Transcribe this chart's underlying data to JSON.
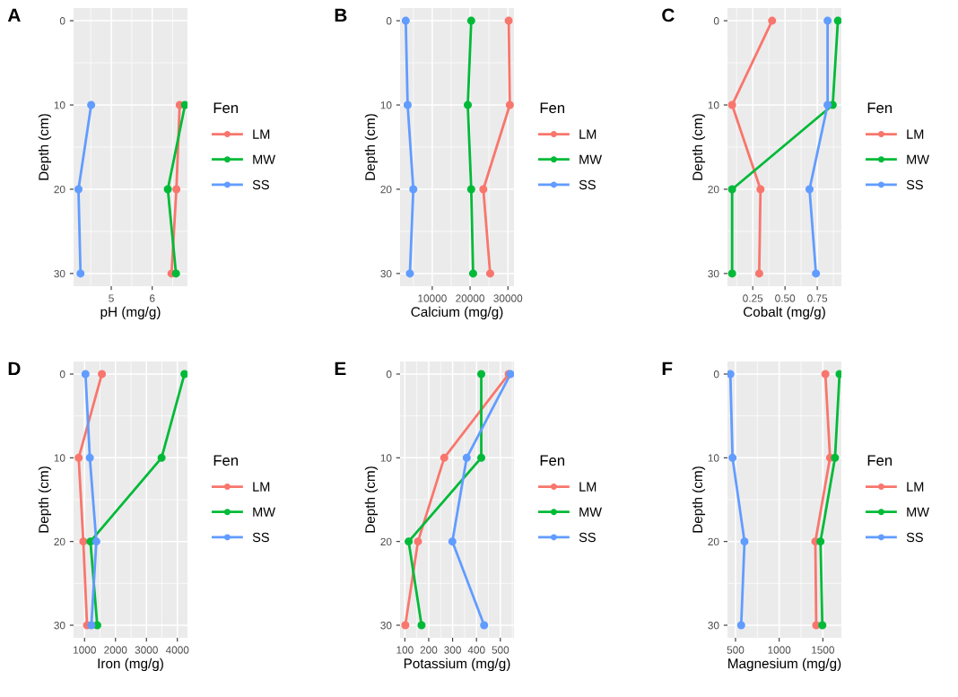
{
  "chart_data": [
    {
      "type": "line",
      "title": "A",
      "xlabel": "pH (mg/g)",
      "ylabel": "Depth (cm)",
      "legend_title": "Fen",
      "legend": "right",
      "grid": true,
      "marker": "circle",
      "xlim": [
        4.08,
        6.86
      ],
      "xticks": [
        5,
        6
      ],
      "ylim": [
        31.5,
        -1.5
      ],
      "yticks": [
        0,
        10,
        20,
        30
      ],
      "series": [
        {
          "name": "LM",
          "color": "#f8766d",
          "x": [
            6.67,
            6.59,
            6.47
          ],
          "values": [
            10,
            20,
            30
          ]
        },
        {
          "name": "MW",
          "color": "#00ba38",
          "x": [
            6.8,
            6.38,
            6.58
          ],
          "values": [
            10,
            20,
            30
          ]
        },
        {
          "name": "SS",
          "color": "#619cff",
          "x": [
            4.51,
            4.2,
            4.25
          ],
          "values": [
            10,
            20,
            30
          ]
        }
      ]
    },
    {
      "type": "line",
      "title": "B",
      "xlabel": "Calcium (mg/g)",
      "ylabel": "Depth (cm)",
      "legend_title": "Fen",
      "legend": "right",
      "grid": true,
      "marker": "circle",
      "xlim": [
        1500,
        31600
      ],
      "xticks": [
        10000,
        20000,
        30000
      ],
      "ylim": [
        31.5,
        -1.5
      ],
      "yticks": [
        0,
        10,
        20,
        30
      ],
      "series": [
        {
          "name": "LM",
          "color": "#f8766d",
          "x": [
            30200,
            30500,
            23500,
            25300
          ],
          "values": [
            0,
            10,
            20,
            30
          ]
        },
        {
          "name": "MW",
          "color": "#00ba38",
          "x": [
            20300,
            19400,
            20300,
            20800
          ],
          "values": [
            0,
            10,
            20,
            30
          ]
        },
        {
          "name": "SS",
          "color": "#619cff",
          "x": [
            3000,
            3500,
            5000,
            4100
          ],
          "values": [
            0,
            10,
            20,
            30
          ]
        }
      ]
    },
    {
      "type": "line",
      "title": "C",
      "xlabel": "Cobalt (mg/g)",
      "ylabel": "Depth (cm)",
      "legend_title": "Fen",
      "legend": "right",
      "grid": true,
      "marker": "circle",
      "xlim": [
        0.054,
        0.937
      ],
      "xticks": [
        {
          "value": 0.25,
          "label": "0.25"
        },
        {
          "value": 0.5,
          "label": "0.50"
        },
        {
          "value": 0.75,
          "label": "0.75"
        }
      ],
      "ylim": [
        31.5,
        -1.5
      ],
      "yticks": [
        0,
        10,
        20,
        30
      ],
      "series": [
        {
          "name": "LM",
          "color": "#f8766d",
          "x": [
            0.4,
            0.09,
            0.31,
            0.3
          ],
          "values": [
            0,
            10,
            20,
            30
          ]
        },
        {
          "name": "MW",
          "color": "#00ba38",
          "x": [
            0.91,
            0.87,
            0.09,
            0.09
          ],
          "values": [
            0,
            10,
            20,
            30
          ]
        },
        {
          "name": "SS",
          "color": "#619cff",
          "x": [
            0.83,
            0.83,
            0.69,
            0.74
          ],
          "values": [
            0,
            10,
            20,
            30
          ]
        }
      ]
    },
    {
      "type": "line",
      "title": "D",
      "xlabel": "Iron (mg/g)",
      "ylabel": "Depth (cm)",
      "legend_title": "Fen",
      "legend": "right",
      "grid": true,
      "marker": "circle",
      "xlim": [
        644,
        4327
      ],
      "xticks": [
        1000,
        2000,
        3000,
        4000
      ],
      "ylim": [
        31.5,
        -1.5
      ],
      "yticks": [
        0,
        10,
        20,
        30
      ],
      "series": [
        {
          "name": "LM",
          "color": "#f8766d",
          "x": [
            1560,
            810,
            960,
            1080
          ],
          "values": [
            0,
            10,
            20,
            30
          ]
        },
        {
          "name": "MW",
          "color": "#00ba38",
          "x": [
            4230,
            3490,
            1190,
            1410
          ],
          "values": [
            0,
            10,
            20,
            30
          ]
        },
        {
          "name": "SS",
          "color": "#619cff",
          "x": [
            1030,
            1170,
            1380,
            1220
          ],
          "values": [
            0,
            10,
            20,
            30
          ]
        }
      ]
    },
    {
      "type": "line",
      "title": "E",
      "xlabel": "Potassium (mg/g)",
      "ylabel": "Depth (cm)",
      "legend_title": "Fen",
      "legend": "right",
      "grid": true,
      "marker": "circle",
      "xlim": [
        80,
        557
      ],
      "xticks": [
        100,
        200,
        300,
        400,
        500
      ],
      "ylim": [
        31.5,
        -1.5
      ],
      "yticks": [
        0,
        10,
        20,
        30
      ],
      "series": [
        {
          "name": "LM",
          "color": "#f8766d",
          "x": [
            535,
            265,
            155,
            102
          ],
          "values": [
            0,
            10,
            20,
            30
          ]
        },
        {
          "name": "MW",
          "color": "#00ba38",
          "x": [
            420,
            420,
            116,
            170
          ],
          "values": [
            0,
            10,
            20,
            30
          ]
        },
        {
          "name": "SS",
          "color": "#619cff",
          "x": [
            542,
            359,
            299,
            432
          ],
          "values": [
            0,
            10,
            20,
            30
          ]
        }
      ]
    },
    {
      "type": "line",
      "title": "F",
      "xlabel": "Magnesium (mg/g)",
      "ylabel": "Depth (cm)",
      "legend_title": "Fen",
      "legend": "right",
      "grid": true,
      "marker": "circle",
      "xlim": [
        408,
        1712
      ],
      "xticks": [
        500,
        1000,
        1500
      ],
      "ylim": [
        31.5,
        -1.5
      ],
      "yticks": [
        0,
        10,
        20,
        30
      ],
      "series": [
        {
          "name": "LM",
          "color": "#f8766d",
          "x": [
            1529,
            1582,
            1414,
            1424
          ],
          "values": [
            0,
            10,
            20,
            30
          ]
        },
        {
          "name": "MW",
          "color": "#00ba38",
          "x": [
            1691,
            1639,
            1473,
            1494
          ],
          "values": [
            0,
            10,
            20,
            30
          ]
        },
        {
          "name": "SS",
          "color": "#619cff",
          "x": [
            441,
            466,
            603,
            565
          ],
          "values": [
            0,
            10,
            20,
            30
          ]
        }
      ]
    }
  ]
}
